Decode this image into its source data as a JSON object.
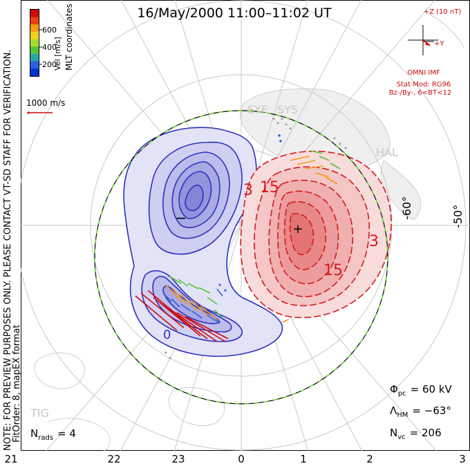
{
  "title": "16/May/2000 11:00–11:02 UT",
  "colorbar": {
    "label": "Vel [m/s]",
    "ticks": [
      "600",
      "400",
      "200"
    ],
    "colors": [
      "#0033cc",
      "#2f5fe0",
      "#2aa7a0",
      "#56c43a",
      "#a6dd2c",
      "#f0d21f",
      "#f59a17",
      "#e8430f",
      "#cc0b0b"
    ]
  },
  "coords_label": "MLT coordinates",
  "vector_scale": "1000 m/s",
  "note": "NOTE: FOR PREVIEW PURPOSES ONLY. PLEASE CONTACT VT-SD STAFF FOR VERIFICATION.",
  "fit_info": "FitOrder: 8, mapEX format",
  "imf": {
    "z_label": "+Z (10 nT)",
    "y_label": "+Y",
    "source": "OMNI IMF",
    "model": "Stat Mod: RG96",
    "condition": "Bz-/By-, 6<BT<12"
  },
  "stations": [
    "SYE",
    "SYS",
    "HAL",
    "TIG"
  ],
  "lat_labels": [
    "-60°",
    "-50°"
  ],
  "mlt_labels": [
    "21",
    "22",
    "23",
    "0",
    "1",
    "2",
    "3"
  ],
  "contour_labels": {
    "neg_symbol": "−",
    "pos_symbol": "+",
    "pos": [
      "3",
      "15",
      "15",
      "3"
    ],
    "neg": [
      "0"
    ]
  },
  "stats": {
    "phi_symbol": "Φ",
    "phi_sub": "pc",
    "phi_value": "= 60 kV",
    "lambda_symbol": "Λ",
    "lambda_sub": "HM",
    "lambda_value": "= −63°",
    "nvc_symbol": "N",
    "nvc_sub": "vc",
    "nvc_value": "= 206",
    "nrads_symbol": "N",
    "nrads_sub": "rads",
    "nrads_value": "= 4"
  },
  "colors": {
    "negative_cell": "#3a3fc4",
    "positive_cell": "#d92222",
    "boundary": "#7bd54a"
  }
}
